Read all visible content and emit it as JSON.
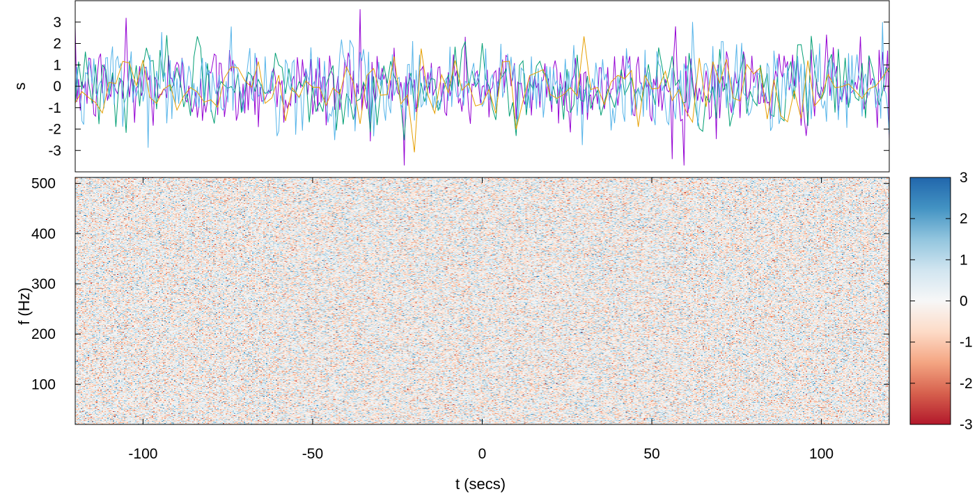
{
  "chart_data": [
    {
      "type": "line",
      "ylabel": "s",
      "xlim": [
        -120,
        120
      ],
      "ylim": [
        -4,
        4
      ],
      "yticks": [
        "3",
        "2",
        "1",
        "0",
        "-1",
        "-2",
        "-3"
      ],
      "ytick_values": [
        3,
        2,
        1,
        0,
        -1,
        -2,
        -3
      ],
      "grid": false,
      "series": [
        {
          "color": "#9400d3",
          "sampling_secs": 0.5,
          "std": 1.0
        },
        {
          "color": "#009e73",
          "sampling_secs": 1.0,
          "std": 1.0
        },
        {
          "color": "#56b4e9",
          "sampling_secs": 0.5,
          "std": 1.0
        },
        {
          "color": "#e69f00",
          "sampling_secs": 2.0,
          "std": 0.8
        }
      ],
      "notable_peaks": [
        {
          "x": -36,
          "y": 3.6
        },
        {
          "x": -105,
          "y": 3.2
        },
        {
          "x": 57,
          "y": 2.8
        },
        {
          "x": 56,
          "y": -3.4
        }
      ]
    },
    {
      "type": "heatmap",
      "xlabel": "t (secs)",
      "ylabel": "f (Hz)",
      "xlim": [
        -120,
        120
      ],
      "ylim": [
        20,
        512
      ],
      "xticks": [
        "-100",
        "-50",
        "0",
        "50",
        "100"
      ],
      "xtick_values": [
        -100,
        -50,
        0,
        50,
        100
      ],
      "yticks": [
        "500",
        "400",
        "300",
        "200",
        "100"
      ],
      "ytick_values": [
        500,
        400,
        300,
        200,
        100
      ],
      "value_range": [
        -3,
        3
      ],
      "distribution": "random noise, standard deviation ~0.8",
      "colorbar": {
        "ticks": [
          "3",
          "2",
          "1",
          "0",
          "-1",
          "-2",
          "-3"
        ],
        "tick_values": [
          3,
          2,
          1,
          0,
          -1,
          -2,
          -3
        ],
        "colors": [
          "#b2182b",
          "#d6604d",
          "#f4a582",
          "#fddbc7",
          "#f7f7f7",
          "#d1e5f0",
          "#92c5de",
          "#4393c3",
          "#2166ac"
        ]
      }
    }
  ]
}
